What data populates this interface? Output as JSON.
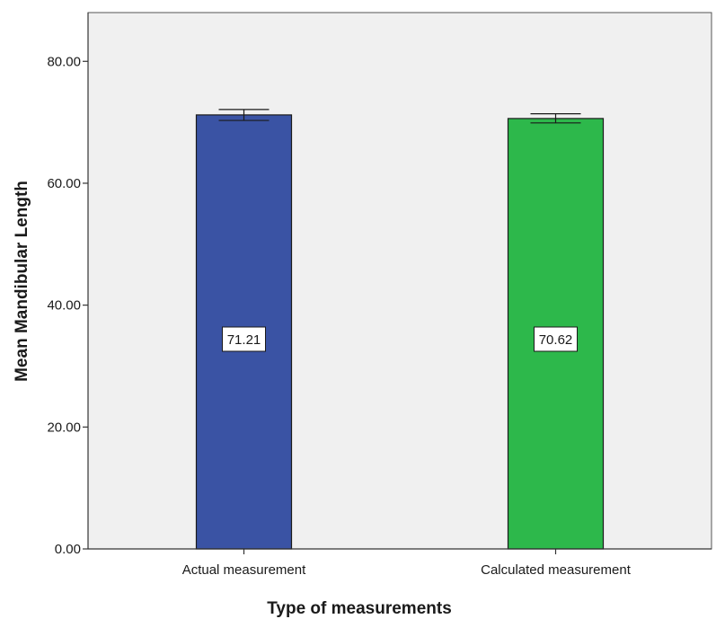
{
  "chart_data": {
    "type": "bar",
    "categories": [
      "Actual measurement",
      "Calculated measurement"
    ],
    "values": [
      71.21,
      70.62
    ],
    "data_labels": [
      "71.21",
      "70.62"
    ],
    "error_bars": [
      {
        "low": 70.3,
        "high": 72.1
      },
      {
        "low": 69.9,
        "high": 71.4
      }
    ],
    "colors": [
      "#3a53a4",
      "#2db84b"
    ],
    "xlabel": "Type of measurements",
    "ylabel": "Mean Mandibular Length",
    "ylim": [
      0,
      88
    ],
    "yticks": [
      0,
      20,
      40,
      60,
      80
    ],
    "ytick_labels": [
      "0.00",
      "20.00",
      "40.00",
      "60.00",
      "80.00"
    ],
    "plot_background": "#f0f0f0",
    "grid": false,
    "legend": "none"
  }
}
